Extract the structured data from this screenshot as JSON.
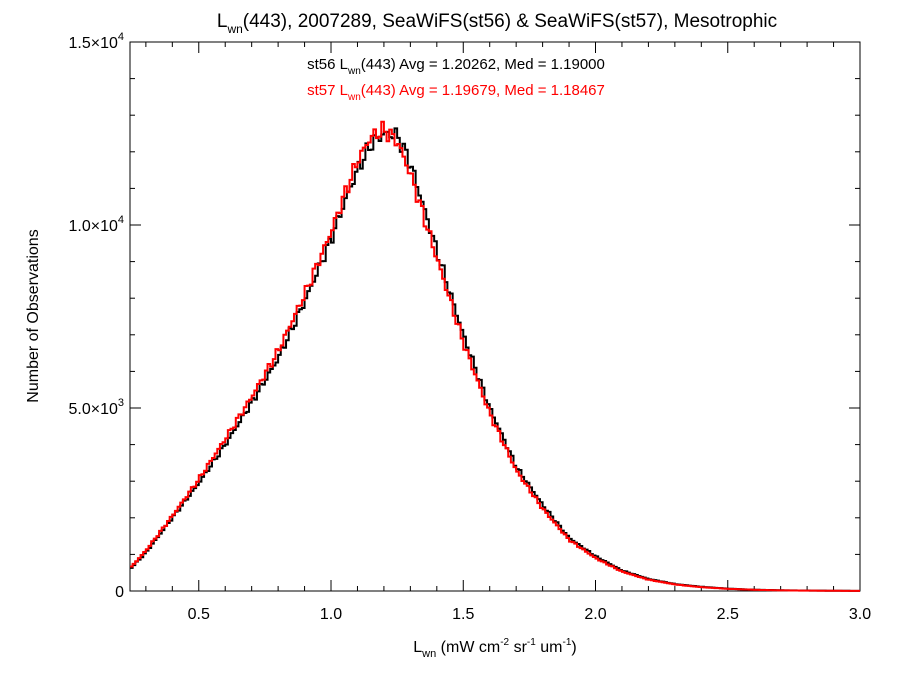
{
  "chart_data": {
    "type": "histogram",
    "title": {
      "main": "L",
      "sub": "wn",
      "rest": "(443), 2007289, SeaWiFS(st56) & SeaWiFS(st57), Mesotrophic"
    },
    "xlabel": {
      "main": "L",
      "sub": "wn",
      "p1": " (mW cm",
      "sup1": "-2",
      "p2": " sr",
      "sup2": "-1",
      "p3": " um",
      "sup3": "-1",
      "p4": ")"
    },
    "ylabel": "Number of Observations",
    "xlim": [
      0.24,
      3.0
    ],
    "ylim": [
      0,
      15000
    ],
    "x_ticks": [
      {
        "value": 0.5,
        "label": "0.5"
      },
      {
        "value": 1.0,
        "label": "1.0"
      },
      {
        "value": 1.5,
        "label": "1.5"
      },
      {
        "value": 2.0,
        "label": "2.0"
      },
      {
        "value": 2.5,
        "label": "2.5"
      },
      {
        "value": 3.0,
        "label": "3.0"
      }
    ],
    "y_ticks": [
      {
        "value": 0,
        "mantissa": "0",
        "exp": ""
      },
      {
        "value": 5000,
        "mantissa": "5.0×10",
        "exp": "3"
      },
      {
        "value": 10000,
        "mantissa": "1.0×10",
        "exp": "4"
      },
      {
        "value": 15000,
        "mantissa": "1.5×10",
        "exp": "4"
      }
    ],
    "annotations": [
      {
        "prefix": "st56 L",
        "sub": "wn",
        "suffix": "(443) Avg = 1.20262, Med = 1.19000",
        "color": "#000000"
      },
      {
        "prefix": "st57 L",
        "sub": "wn",
        "suffix": "(443) Avg = 1.19679, Med = 1.18467",
        "color": "#ff0000"
      }
    ],
    "bin_width": 0.01,
    "series": [
      {
        "name": "st56",
        "color": "#000000",
        "x": [
          0.24,
          0.3,
          0.4,
          0.5,
          0.6,
          0.7,
          0.8,
          0.9,
          1.0,
          1.05,
          1.1,
          1.15,
          1.2,
          1.25,
          1.3,
          1.4,
          1.5,
          1.6,
          1.7,
          1.8,
          1.9,
          2.0,
          2.1,
          2.2,
          2.3,
          2.4,
          2.5,
          2.6,
          2.7,
          2.8,
          2.9,
          3.0
        ],
        "y": [
          600,
          1050,
          2000,
          2950,
          4000,
          5150,
          6350,
          7900,
          9600,
          10600,
          11500,
          12200,
          12500,
          12450,
          11700,
          9300,
          7000,
          5000,
          3400,
          2350,
          1450,
          950,
          560,
          330,
          190,
          115,
          65,
          35,
          20,
          12,
          7,
          4
        ]
      },
      {
        "name": "st57",
        "color": "#ff0000",
        "x": [
          0.24,
          0.3,
          0.4,
          0.5,
          0.6,
          0.7,
          0.8,
          0.9,
          1.0,
          1.05,
          1.1,
          1.15,
          1.2,
          1.25,
          1.3,
          1.4,
          1.5,
          1.6,
          1.7,
          1.8,
          1.9,
          2.0,
          2.1,
          2.2,
          2.3,
          2.4,
          2.5,
          2.6,
          2.7,
          2.8,
          2.9,
          3.0
        ],
        "y": [
          620,
          1100,
          2050,
          3050,
          4150,
          5300,
          6550,
          8100,
          9800,
          10800,
          11750,
          12400,
          12600,
          12300,
          11400,
          9100,
          6800,
          4850,
          3300,
          2250,
          1400,
          900,
          530,
          310,
          180,
          105,
          60,
          32,
          18,
          10,
          6,
          3
        ]
      }
    ]
  }
}
